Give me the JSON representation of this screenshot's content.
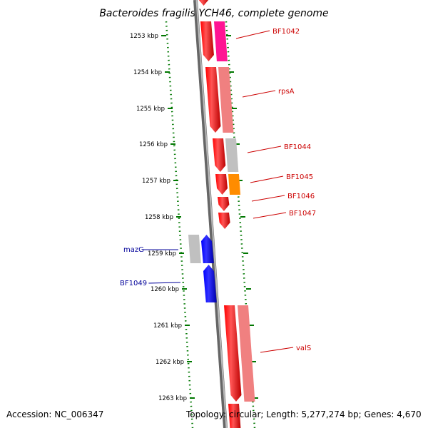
{
  "title": "Bacteroides fragilis YCH46, complete genome",
  "footer": {
    "accession": "Accession: NC_006347",
    "topology": "Topology: circular; Length: 5,277,274 bp; Genes: 4,670"
  },
  "axis": {
    "ticks": [
      "1253 kbp",
      "1254 kbp",
      "1255 kbp",
      "1256 kbp",
      "1257 kbp",
      "1258 kbp",
      "1259 kbp",
      "1260 kbp",
      "1261 kbp",
      "1262 kbp",
      "1263 kbp"
    ]
  },
  "colors": {
    "forward_strand": "#ff0000",
    "reverse_strand": "#0000ff",
    "forward_label": "#cc0000",
    "reverse_label": "#000099",
    "backbone": "#888888",
    "scale_dots": "#007700"
  },
  "genes": [
    {
      "name": "BF1042",
      "strand": "forward",
      "cog_color": "#ff1493"
    },
    {
      "name": "rpsA",
      "strand": "forward",
      "cog_color": "#f08080"
    },
    {
      "name": "BF1044",
      "strand": "forward",
      "cog_color": "#c0c0c0"
    },
    {
      "name": "BF1045",
      "strand": "forward",
      "cog_color": "#ff8c00"
    },
    {
      "name": "BF1046",
      "strand": "forward",
      "cog_color": ""
    },
    {
      "name": "BF1047",
      "strand": "forward",
      "cog_color": ""
    },
    {
      "name": "mazG",
      "strand": "reverse",
      "cog_color": "#c0c0c0"
    },
    {
      "name": "BF1049",
      "strand": "reverse",
      "cog_color": ""
    },
    {
      "name": "valS",
      "strand": "forward",
      "cog_color": "#f08080"
    }
  ]
}
